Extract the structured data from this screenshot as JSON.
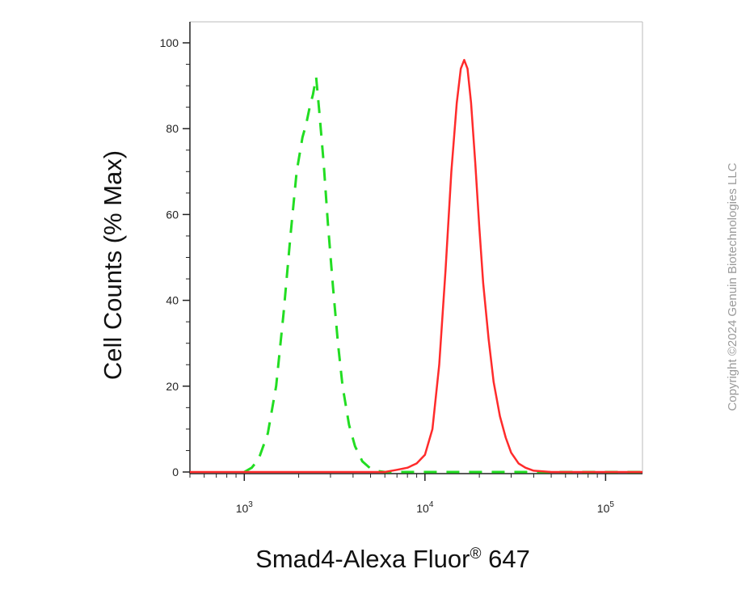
{
  "chart_data": {
    "type": "line",
    "ylabel": "Cell Counts (% Max)",
    "xlabel_main": "Smad4-Alexa Fluor",
    "xlabel_reg": "®",
    "xlabel_tail": " 647",
    "xlim": [
      500,
      160000
    ],
    "ylim": [
      0,
      100
    ],
    "x_scale": "log",
    "yticks": [
      0,
      20,
      40,
      60,
      80,
      100
    ],
    "xticks": [
      {
        "value": 1000,
        "base": "10",
        "exp": "3"
      },
      {
        "value": 10000,
        "base": "10",
        "exp": "4"
      },
      {
        "value": 100000,
        "base": "10",
        "exp": "5"
      }
    ],
    "grid": false,
    "copyright": "Copyright ©2024 Genuin Biotechnologies LLC",
    "series": [
      {
        "color": "#22dd22",
        "style": "dashed",
        "x": [
          1000,
          1100,
          1200,
          1350,
          1500,
          1650,
          1800,
          1950,
          2100,
          2200,
          2300,
          2400,
          2500,
          2600,
          2750,
          2900,
          3100,
          3300,
          3500,
          3800,
          4100,
          4500,
          5000,
          5500,
          6000,
          7000,
          10000,
          20000,
          40000,
          100000,
          160000
        ],
        "y": [
          0,
          1,
          3,
          9,
          20,
          37,
          55,
          70,
          78,
          81,
          85,
          88,
          92,
          84,
          72,
          58,
          43,
          30,
          20,
          11,
          6,
          2.5,
          0.8,
          0.2,
          0,
          0,
          0,
          0,
          0,
          0,
          0
        ]
      },
      {
        "color": "#ff2b2b",
        "style": "solid",
        "x": [
          500,
          1000,
          3000,
          6000,
          7000,
          8000,
          9000,
          10000,
          11000,
          12000,
          13000,
          14000,
          15000,
          15800,
          16500,
          17200,
          18000,
          19000,
          20000,
          21000,
          22500,
          24000,
          26000,
          28000,
          30000,
          33000,
          36000,
          40000,
          50000,
          100000,
          160000
        ],
        "y": [
          0,
          0,
          0,
          0,
          0.5,
          1,
          2,
          4,
          10,
          25,
          47,
          70,
          86,
          94,
          96,
          94,
          86,
          72,
          57,
          44,
          31,
          21,
          13,
          8,
          4.5,
          2,
          1,
          0.3,
          0,
          0,
          0
        ]
      }
    ]
  }
}
